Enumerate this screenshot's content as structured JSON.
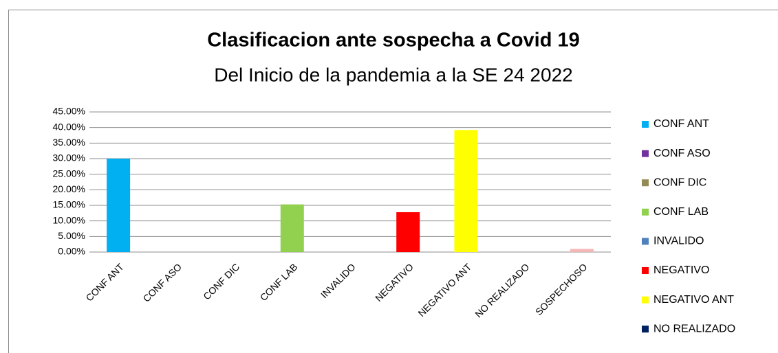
{
  "chart_data": {
    "type": "bar",
    "title": "Clasificacion ante sospecha a Covid 19",
    "subtitle": "Del Inicio de la pandemia a la SE 24 2022",
    "categories": [
      "CONF ANT",
      "CONF ASO",
      "CONF DIC",
      "CONF LAB",
      "INVALIDO",
      "NEGATIVO",
      "NEGATIVO ANT",
      "NO REALIZADO",
      "SOSPECHOSO"
    ],
    "values": [
      30,
      0,
      0,
      15.3,
      0,
      12.8,
      39.2,
      0,
      1.0
    ],
    "colors": [
      "#00b0f0",
      "#7030a0",
      "#948a54",
      "#92d050",
      "#4f81bd",
      "#ff0000",
      "#ffff00",
      "#002060",
      "#f4b6b6"
    ],
    "ylim": [
      0,
      45
    ],
    "yticks": [
      {
        "value": 0,
        "label": "0.00%"
      },
      {
        "value": 5,
        "label": "5.00%"
      },
      {
        "value": 10,
        "label": "10.00%"
      },
      {
        "value": 15,
        "label": "15.00%"
      },
      {
        "value": 20,
        "label": "20.00%"
      },
      {
        "value": 25,
        "label": "25.00%"
      },
      {
        "value": 30,
        "label": "30.00%"
      },
      {
        "value": 35,
        "label": "35.00%"
      },
      {
        "value": 40,
        "label": "40.00%"
      },
      {
        "value": 45,
        "label": "45.00%"
      }
    ],
    "grid": true,
    "legend": "right"
  }
}
